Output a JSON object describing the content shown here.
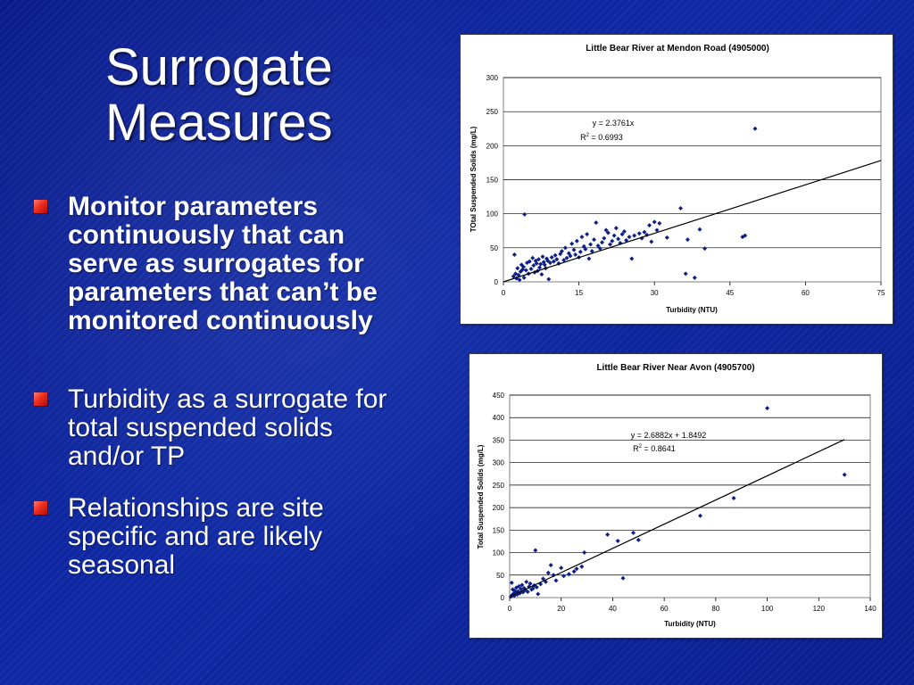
{
  "slide": {
    "title": "Surrogate\nMeasures",
    "bullets": [
      {
        "text": "Monitor parameters continuously that can serve as surrogates for parameters that can’t be monitored continuously"
      },
      {
        "text": "Turbidity as a surrogate for total suspended solids and/or TP"
      },
      {
        "text": "Relationships are site specific and are likely seasonal"
      }
    ]
  },
  "colors": {
    "background": "#0f2aa8",
    "bullet_marker": "#ee2f20",
    "chart_points": "#0c1f86"
  },
  "chart_data": [
    {
      "type": "scatter",
      "title": "Little Bear River at Mendon Road (4905000)",
      "xlabel": "Turbidity (NTU)",
      "ylabel": "TOtal Suspended Solids (mg/L)",
      "xlim": [
        0,
        75
      ],
      "ylim": [
        0,
        300
      ],
      "xticks": [
        0,
        15,
        30,
        45,
        60,
        75
      ],
      "yticks": [
        0,
        50,
        100,
        150,
        200,
        250,
        300
      ],
      "grid": true,
      "annotation": {
        "equation": "y = 2.3761x",
        "r2_prefix": "R",
        "r2_sup": "2",
        "r2_suffix": " = 0.6993"
      },
      "trendline": {
        "x": [
          0,
          75
        ],
        "y": [
          0,
          178.2
        ]
      },
      "points": [
        [
          2,
          8
        ],
        [
          2.2,
          40
        ],
        [
          2.4,
          12
        ],
        [
          2.6,
          5
        ],
        [
          2.8,
          20
        ],
        [
          3,
          10
        ],
        [
          3.2,
          3
        ],
        [
          3.4,
          15
        ],
        [
          3.6,
          25
        ],
        [
          3.8,
          18
        ],
        [
          4,
          22
        ],
        [
          4.1,
          6
        ],
        [
          4.2,
          99
        ],
        [
          4.5,
          17
        ],
        [
          4.7,
          28
        ],
        [
          5,
          12
        ],
        [
          5.2,
          30
        ],
        [
          5.5,
          19
        ],
        [
          5.8,
          35
        ],
        [
          6,
          24
        ],
        [
          6.2,
          14
        ],
        [
          6.4,
          31
        ],
        [
          6.6,
          27
        ],
        [
          6.8,
          16
        ],
        [
          7,
          33
        ],
        [
          7.2,
          21
        ],
        [
          7.4,
          26
        ],
        [
          7.6,
          11
        ],
        [
          7.8,
          37
        ],
        [
          8,
          29
        ],
        [
          8.2,
          25
        ],
        [
          8.4,
          20
        ],
        [
          8.6,
          34
        ],
        [
          8.8,
          31
        ],
        [
          9,
          4
        ],
        [
          9.3,
          28
        ],
        [
          9.6,
          36
        ],
        [
          10,
          30
        ],
        [
          10.3,
          39
        ],
        [
          10.6,
          33
        ],
        [
          11,
          27
        ],
        [
          11.3,
          41
        ],
        [
          11.6,
          45
        ],
        [
          12,
          32
        ],
        [
          12.3,
          50
        ],
        [
          12.6,
          35
        ],
        [
          13,
          42
        ],
        [
          13.3,
          38
        ],
        [
          13.6,
          56
        ],
        [
          14,
          47
        ],
        [
          14.3,
          40
        ],
        [
          14.6,
          60
        ],
        [
          15,
          36
        ],
        [
          15.3,
          44
        ],
        [
          15.6,
          66
        ],
        [
          16,
          52
        ],
        [
          16.3,
          48
        ],
        [
          16.6,
          70
        ],
        [
          17,
          34
        ],
        [
          17.3,
          55
        ],
        [
          17.6,
          45
        ],
        [
          18,
          62
        ],
        [
          18.4,
          87
        ],
        [
          18.8,
          53
        ],
        [
          19.2,
          49
        ],
        [
          19.6,
          58
        ],
        [
          20,
          64
        ],
        [
          20.4,
          76
        ],
        [
          20.8,
          72
        ],
        [
          21.2,
          55
        ],
        [
          21.6,
          60
        ],
        [
          22,
          68
        ],
        [
          22.4,
          79
        ],
        [
          22.8,
          63
        ],
        [
          23.2,
          57
        ],
        [
          23.6,
          70
        ],
        [
          24,
          74
        ],
        [
          24.4,
          61
        ],
        [
          25,
          66
        ],
        [
          25.5,
          34
        ],
        [
          26,
          68
        ],
        [
          27,
          71
        ],
        [
          27.5,
          64
        ],
        [
          28,
          73
        ],
        [
          28.5,
          69
        ],
        [
          29,
          83
        ],
        [
          29.4,
          59
        ],
        [
          30,
          88
        ],
        [
          30.5,
          76
        ],
        [
          31,
          86
        ],
        [
          32.5,
          65
        ],
        [
          35.2,
          108
        ],
        [
          36.2,
          12
        ],
        [
          36.6,
          62
        ],
        [
          38,
          6
        ],
        [
          39,
          77
        ],
        [
          40,
          49
        ],
        [
          47.5,
          66
        ],
        [
          48,
          68
        ],
        [
          50,
          225
        ]
      ]
    },
    {
      "type": "scatter",
      "title": "Little Bear River Near Avon (4905700)",
      "xlabel": "Turbidity (NTU)",
      "ylabel": "Total Suspended Solids (mg/L)",
      "xlim": [
        0,
        140
      ],
      "ylim": [
        0,
        450
      ],
      "xticks": [
        0,
        20,
        40,
        60,
        80,
        100,
        120,
        140
      ],
      "yticks": [
        0,
        50,
        100,
        150,
        200,
        250,
        300,
        350,
        400,
        450
      ],
      "grid": true,
      "annotation": {
        "equation": "y = 2.6882x + 1.8492",
        "r2_prefix": "R",
        "r2_sup": "2",
        "r2_suffix": " = 0.8641"
      },
      "trendline": {
        "x": [
          0,
          130
        ],
        "y": [
          1.85,
          351.3
        ]
      },
      "points": [
        [
          0.5,
          2
        ],
        [
          0.8,
          33
        ],
        [
          1,
          6
        ],
        [
          1.2,
          18
        ],
        [
          1.5,
          9
        ],
        [
          1.8,
          4
        ],
        [
          2,
          15
        ],
        [
          2.3,
          11
        ],
        [
          2.6,
          22
        ],
        [
          3,
          7
        ],
        [
          3.3,
          14
        ],
        [
          3.6,
          25
        ],
        [
          4,
          10
        ],
        [
          4.4,
          19
        ],
        [
          4.8,
          28
        ],
        [
          5.2,
          12
        ],
        [
          5.6,
          21
        ],
        [
          6,
          17
        ],
        [
          6.5,
          35
        ],
        [
          7,
          13
        ],
        [
          7.5,
          24
        ],
        [
          8,
          31
        ],
        [
          8.5,
          18
        ],
        [
          9,
          20
        ],
        [
          9.5,
          27
        ],
        [
          10,
          105
        ],
        [
          10.5,
          23
        ],
        [
          11,
          8
        ],
        [
          12,
          30
        ],
        [
          13,
          42
        ],
        [
          14,
          35
        ],
        [
          15,
          55
        ],
        [
          16,
          72
        ],
        [
          17,
          50
        ],
        [
          18,
          38
        ],
        [
          20,
          66
        ],
        [
          21,
          48
        ],
        [
          23,
          52
        ],
        [
          25,
          58
        ],
        [
          26,
          64
        ],
        [
          28,
          69
        ],
        [
          29,
          100
        ],
        [
          38,
          140
        ],
        [
          42,
          126
        ],
        [
          44,
          43
        ],
        [
          48,
          144
        ],
        [
          50,
          128
        ],
        [
          74,
          182
        ],
        [
          87,
          221
        ],
        [
          100,
          421
        ],
        [
          130,
          273
        ]
      ]
    }
  ]
}
